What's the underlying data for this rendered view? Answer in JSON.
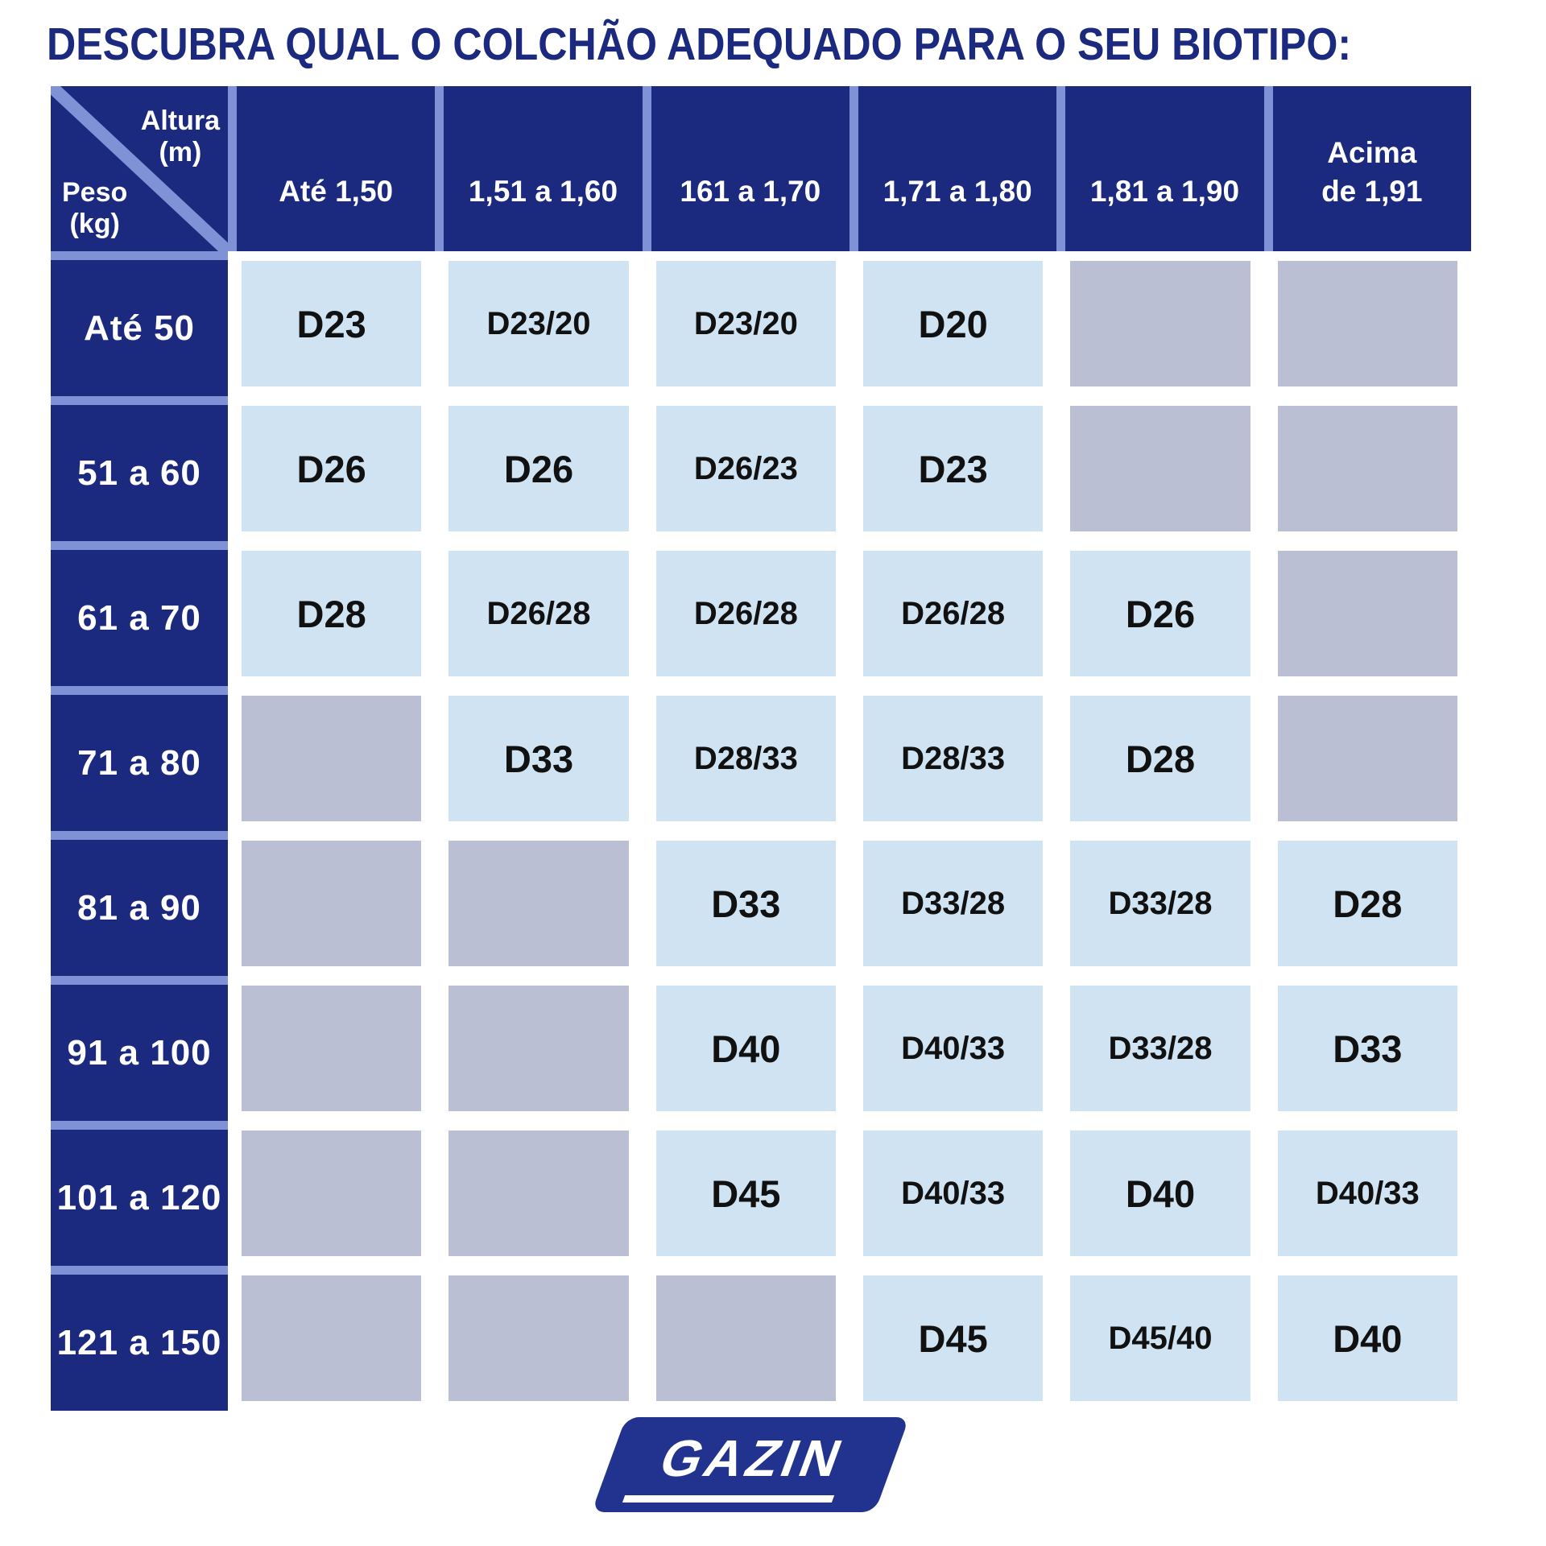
{
  "chart_data": {
    "type": "table",
    "title": "DESCUBRA QUAL O COLCHÃO ADEQUADO PARA O SEU BIOTIPO:",
    "corner": {
      "altura_label": "Altura",
      "altura_unit": "(m)",
      "peso_label": "Peso",
      "peso_unit": "(kg)"
    },
    "columns": [
      "Até 1,50",
      "1,51 a 1,60",
      "161 a 1,70",
      "1,71 a 1,80",
      "1,81 a 1,90",
      "Acima\nde 1,91"
    ],
    "rows": [
      {
        "label": "Até 50",
        "cells": [
          "D23",
          "D23/20",
          "D23/20",
          "D20",
          null,
          null
        ]
      },
      {
        "label": "51 a 60",
        "cells": [
          "D26",
          "D26",
          "D26/23",
          "D23",
          null,
          null
        ]
      },
      {
        "label": "61 a 70",
        "cells": [
          "D28",
          "D26/28",
          "D26/28",
          "D26/28",
          "D26",
          null
        ]
      },
      {
        "label": "71 a 80",
        "cells": [
          null,
          "D33",
          "D28/33",
          "D28/33",
          "D28",
          null
        ]
      },
      {
        "label": "81 a 90",
        "cells": [
          null,
          null,
          "D33",
          "D33/28",
          "D33/28",
          "D28"
        ]
      },
      {
        "label": "91 a 100",
        "cells": [
          null,
          null,
          "D40",
          "D40/33",
          "D33/28",
          "D33"
        ]
      },
      {
        "label": "101 a 120",
        "cells": [
          null,
          null,
          "D45",
          "D40/33",
          "D40",
          "D40/33"
        ]
      },
      {
        "label": "121 a 150",
        "cells": [
          null,
          null,
          null,
          "D45",
          "D45/40",
          "D40"
        ]
      }
    ]
  },
  "logo": {
    "brand": "GAZIN"
  },
  "colors": {
    "navy": "#1b2a7e",
    "separator": "#8092d6",
    "cell_blue": "#d0e3f2",
    "cell_gray": "#babfd3",
    "cell_text": "#111111",
    "logo_navy": "#21338f",
    "background": "#ffffff"
  }
}
